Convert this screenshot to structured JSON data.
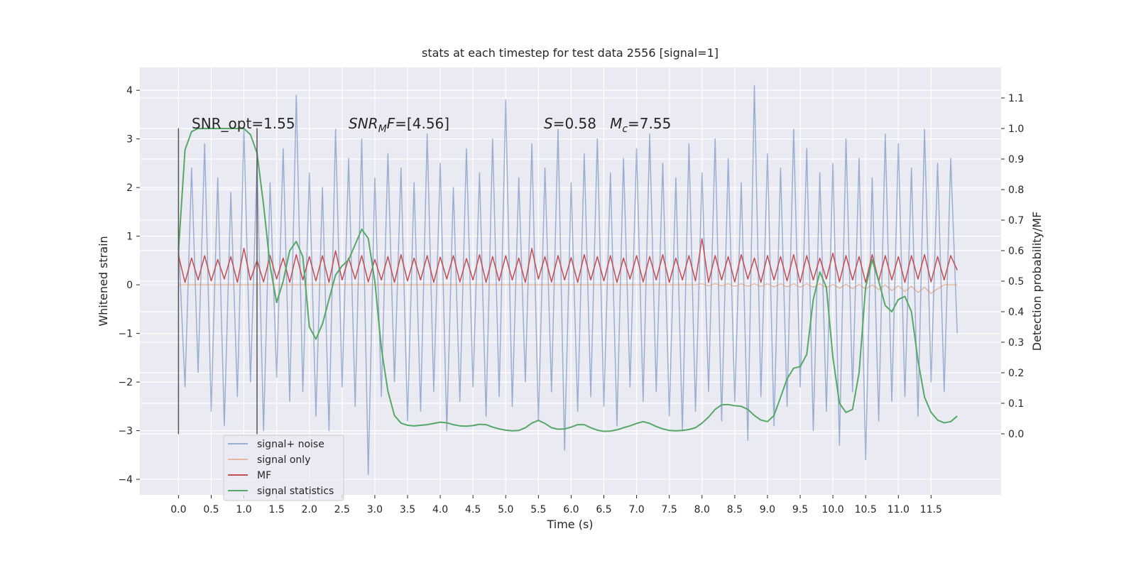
{
  "chart_data": {
    "type": "line",
    "title": "stats at each timestep for test data 2556 [signal=1]",
    "x_label": "Time (s)",
    "y_label": "Whitened strain",
    "y2_label": "Detection probability/MF",
    "xlim": [
      -0.59,
      12.57
    ],
    "ylim": [
      -4.32,
      4.47
    ],
    "y2lim": [
      -0.2,
      1.2
    ],
    "xticks": [
      {
        "value": 0,
        "label": "0.0"
      },
      0.5,
      {
        "value": 1,
        "label": "1.0"
      },
      1.5,
      {
        "value": 2,
        "label": "2.0"
      },
      2.5,
      {
        "value": 3,
        "label": "3.0"
      },
      3.5,
      {
        "value": 4,
        "label": "4.0"
      },
      4.5,
      {
        "value": 5,
        "label": "5.0"
      },
      5.5,
      {
        "value": 6,
        "label": "6.0"
      },
      6.5,
      {
        "value": 7,
        "label": "7.0"
      },
      7.5,
      {
        "value": 8,
        "label": "8.0"
      },
      8.5,
      {
        "value": 9,
        "label": "9.0"
      },
      9.5,
      {
        "value": 10,
        "label": "10.0"
      },
      10.5,
      {
        "value": 11,
        "label": "11.0"
      },
      11.5
    ],
    "yticks": [
      {
        "value": -4,
        "label": "−4"
      },
      {
        "value": -3,
        "label": "−3"
      },
      {
        "value": -2,
        "label": "−2"
      },
      {
        "value": -1,
        "label": "−1"
      },
      0,
      1,
      2,
      3,
      4
    ],
    "y2ticks": [
      {
        "value": 0,
        "label": "0.0"
      },
      0.1,
      0.2,
      0.3,
      0.4,
      0.5,
      0.6,
      0.7,
      0.8,
      0.9,
      {
        "value": 1,
        "label": "1.0"
      },
      1.1
    ],
    "grid": true,
    "legend": "lower left",
    "x": [
      0,
      0.1,
      0.2,
      0.3,
      0.4,
      0.5,
      0.6,
      0.7,
      0.8,
      0.9,
      1,
      1.1,
      1.2,
      1.3,
      1.4,
      1.5,
      1.6,
      1.7,
      1.8,
      1.9,
      2,
      2.1,
      2.2,
      2.3,
      2.4,
      2.5,
      2.6,
      2.7,
      2.8,
      2.9,
      3,
      3.1,
      3.2,
      3.3,
      3.4,
      3.5,
      3.6,
      3.7,
      3.8,
      3.9,
      4,
      4.1,
      4.2,
      4.3,
      4.4,
      4.5,
      4.6,
      4.7,
      4.8,
      4.9,
      5,
      5.1,
      5.2,
      5.3,
      5.4,
      5.5,
      5.6,
      5.7,
      5.8,
      5.9,
      6,
      6.1,
      6.2,
      6.3,
      6.4,
      6.5,
      6.6,
      6.7,
      6.8,
      6.9,
      7,
      7.1,
      7.2,
      7.3,
      7.4,
      7.5,
      7.6,
      7.7,
      7.8,
      7.9,
      8,
      8.1,
      8.2,
      8.3,
      8.4,
      8.5,
      8.6,
      8.7,
      8.8,
      8.9,
      9,
      9.1,
      9.2,
      9.3,
      9.4,
      9.5,
      9.6,
      9.7,
      9.8,
      9.9,
      10,
      10.1,
      10.2,
      10.3,
      10.4,
      10.5,
      10.6,
      10.7,
      10.8,
      10.9,
      11,
      11.1,
      11.2,
      11.3,
      11.4,
      11.5,
      11.6,
      11.7,
      11.8,
      11.9
    ],
    "series": [
      {
        "name": "signal+ noise",
        "color": "#4c72b0",
        "opacity": 0.5,
        "values": [
          0.9,
          -2.1,
          2.4,
          -1.8,
          2.9,
          -2.6,
          2.2,
          -2.9,
          1.9,
          -2.3,
          3.2,
          -2.0,
          2.5,
          -3.0,
          2.1,
          -1.9,
          2.8,
          -2.4,
          3.9,
          -2.2,
          2.3,
          -2.7,
          2.0,
          -3.0,
          3.2,
          -2.1,
          2.6,
          -2.5,
          3.0,
          -3.9,
          2.2,
          -2.3,
          2.7,
          -2.0,
          2.4,
          -2.8,
          2.1,
          -2.6,
          3.1,
          -2.2,
          2.5,
          -3.0,
          2.0,
          -2.4,
          2.8,
          -2.1,
          2.3,
          -2.7,
          3.0,
          -2.3,
          3.8,
          -2.5,
          2.2,
          -2.0,
          2.9,
          -2.8,
          2.4,
          -2.2,
          3.2,
          -3.4,
          2.1,
          -2.6,
          2.7,
          -2.3,
          3.0,
          -2.5,
          2.3,
          -2.9,
          2.6,
          -2.1,
          2.8,
          -2.4,
          3.1,
          -2.2,
          2.5,
          -2.7,
          2.2,
          -3.0,
          2.9,
          -2.6,
          2.3,
          -2.2,
          3.0,
          -2.8,
          2.6,
          -2.4,
          2.1,
          -3.2,
          4.1,
          -2.3,
          2.7,
          -2.9,
          2.4,
          -2.5,
          3.2,
          -2.1,
          2.8,
          -3.0,
          2.3,
          -2.6,
          2.5,
          -3.3,
          3.0,
          -2.2,
          2.6,
          -3.6,
          2.2,
          -2.8,
          3.1,
          -2.4,
          2.9,
          -2.3,
          2.4,
          -2.7,
          3.2,
          -2.0,
          2.5,
          -2.2,
          2.6,
          -1.0
        ]
      },
      {
        "name": "signal only",
        "color": "#dd8452",
        "opacity": 0.5,
        "values": [
          0,
          0,
          0,
          0,
          0,
          0,
          0,
          0,
          0,
          0,
          0,
          0,
          0,
          0,
          0,
          0,
          0,
          0,
          0,
          0,
          0,
          0,
          0,
          0,
          0,
          0,
          0,
          0,
          0,
          0,
          0,
          0,
          0,
          0,
          0,
          0,
          0,
          0,
          0,
          0,
          0,
          0,
          0,
          0,
          0,
          0,
          0,
          0,
          0,
          0,
          0,
          0,
          0,
          0,
          0,
          0,
          0,
          0,
          0,
          0,
          0,
          0,
          0,
          0,
          0,
          0,
          0,
          0,
          0,
          0,
          0,
          0,
          0,
          0,
          0,
          0,
          0,
          0,
          0,
          0,
          0.02,
          -0.02,
          0.02,
          -0.02,
          0.02,
          -0.03,
          0.02,
          -0.03,
          0.02,
          -0.03,
          0.02,
          -0.04,
          0.02,
          -0.04,
          0.02,
          -0.05,
          0.02,
          -0.05,
          0.02,
          -0.06,
          0.01,
          -0.07,
          0.01,
          -0.08,
          0.01,
          -0.09,
          0,
          -0.1,
          0,
          -0.12,
          -0.02,
          -0.14,
          -0.03,
          -0.16,
          -0.05,
          -0.18,
          -0.08,
          0,
          0,
          0
        ]
      },
      {
        "name": "MF",
        "color": "#c44e52",
        "opacity": 1,
        "values": [
          0.6,
          0.05,
          0.55,
          0.1,
          0.6,
          0.08,
          0.52,
          0.12,
          0.58,
          0.05,
          0.75,
          0.1,
          0.5,
          0.06,
          0.6,
          0.12,
          0.55,
          0.05,
          0.62,
          0.1,
          0.58,
          0.08,
          0.6,
          0.05,
          0.7,
          0.1,
          0.55,
          0.12,
          0.6,
          0.06,
          0.52,
          0.1,
          0.58,
          0.05,
          0.62,
          0.08,
          0.55,
          0.1,
          0.6,
          0.05,
          0.57,
          0.12,
          0.6,
          0.06,
          0.54,
          0.1,
          0.62,
          0.05,
          0.58,
          0.08,
          0.6,
          0.1,
          0.55,
          0.05,
          0.75,
          0.12,
          0.58,
          0.06,
          0.6,
          0.1,
          0.56,
          0.05,
          0.62,
          0.1,
          0.58,
          0.08,
          0.6,
          0.05,
          0.55,
          0.12,
          0.6,
          0.06,
          0.58,
          0.1,
          0.62,
          0.05,
          0.55,
          0.1,
          0.6,
          0.08,
          0.95,
          0.05,
          0.6,
          0.1,
          0.58,
          0.06,
          0.62,
          0.12,
          0.55,
          0.05,
          0.6,
          0.1,
          0.58,
          0.08,
          0.62,
          0.05,
          0.6,
          0.1,
          0.55,
          0.12,
          0.65,
          0.06,
          0.6,
          0.1,
          0.58,
          0.05,
          0.62,
          0.08,
          0.6,
          0.1,
          0.58,
          0.05,
          0.6,
          0.12,
          0.62,
          0.06,
          0.58,
          0.1,
          0.6,
          0.3
        ]
      },
      {
        "name": "signal statistics",
        "color": "#55a868",
        "opacity": 1,
        "axis": "y2",
        "values": [
          0.6,
          0.93,
          0.99,
          1,
          1,
          1,
          1,
          1,
          1,
          1,
          1,
          0.98,
          0.92,
          0.75,
          0.55,
          0.43,
          0.5,
          0.6,
          0.63,
          0.58,
          0.35,
          0.31,
          0.36,
          0.44,
          0.52,
          0.55,
          0.57,
          0.62,
          0.67,
          0.64,
          0.5,
          0.28,
          0.14,
          0.06,
          0.035,
          0.028,
          0.026,
          0.028,
          0.03,
          0.034,
          0.038,
          0.036,
          0.03,
          0.026,
          0.025,
          0.027,
          0.031,
          0.03,
          0.022,
          0.016,
          0.012,
          0.01,
          0.011,
          0.02,
          0.035,
          0.044,
          0.034,
          0.02,
          0.015,
          0.016,
          0.022,
          0.03,
          0.03,
          0.02,
          0.012,
          0.008,
          0.009,
          0.013,
          0.02,
          0.026,
          0.034,
          0.04,
          0.034,
          0.024,
          0.016,
          0.011,
          0.01,
          0.011,
          0.014,
          0.02,
          0.035,
          0.055,
          0.08,
          0.095,
          0.096,
          0.092,
          0.09,
          0.08,
          0.06,
          0.045,
          0.04,
          0.06,
          0.12,
          0.18,
          0.215,
          0.22,
          0.26,
          0.44,
          0.53,
          0.48,
          0.25,
          0.1,
          0.07,
          0.08,
          0.2,
          0.48,
          0.57,
          0.5,
          0.42,
          0.4,
          0.44,
          0.45,
          0.4,
          0.24,
          0.12,
          0.07,
          0.045,
          0.036,
          0.04,
          0.058
        ]
      }
    ],
    "vlines": {
      "x": [
        0,
        1.2
      ],
      "ymin": -3.07,
      "ymax": 3.22,
      "color": "#555555"
    },
    "annotations": [
      [
        {
          "text": "SNR_opt=1.55"
        }
      ],
      [
        {
          "text": "SNR",
          "italic": true
        },
        {
          "text": "M",
          "italic": true,
          "sub": true
        },
        {
          "text": "F",
          "italic": true
        },
        {
          "text": "=[4.56]"
        }
      ],
      [
        {
          "text": "S",
          "italic": true
        },
        {
          "text": "=0.58   "
        },
        {
          "text": "M",
          "italic": true
        },
        {
          "text": "c",
          "italic": true,
          "sub": true
        },
        {
          "text": "=7.55"
        }
      ]
    ]
  }
}
